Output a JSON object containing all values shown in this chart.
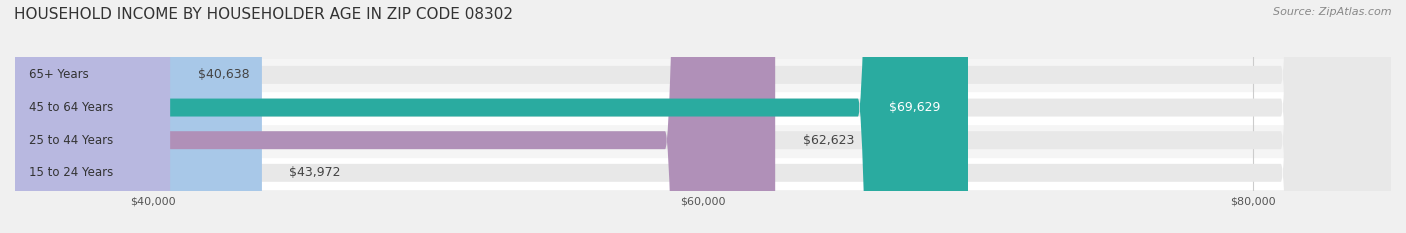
{
  "title": "HOUSEHOLD INCOME BY HOUSEHOLDER AGE IN ZIP CODE 08302",
  "source": "Source: ZipAtlas.com",
  "categories": [
    "15 to 24 Years",
    "25 to 44 Years",
    "45 to 64 Years",
    "65+ Years"
  ],
  "values": [
    43972,
    62623,
    69629,
    40638
  ],
  "bar_colors": [
    "#a8c8e8",
    "#b090b8",
    "#2aaba0",
    "#b8b8e0"
  ],
  "labels": [
    "$43,972",
    "$62,623",
    "$69,629",
    "$40,638"
  ],
  "label_inside": [
    false,
    false,
    true,
    false
  ],
  "xmin": 35000,
  "xmax": 85000,
  "xticks": [
    40000,
    60000,
    80000
  ],
  "xtick_labels": [
    "$40,000",
    "$60,000",
    "$80,000"
  ],
  "bg_color": "#f0f0f0",
  "bar_bg_color": "#e8e8e8",
  "title_fontsize": 11,
  "source_fontsize": 8,
  "label_fontsize": 9,
  "tick_fontsize": 8,
  "cat_fontsize": 8.5,
  "bar_height": 0.55,
  "row_bg_colors": [
    "#ffffff",
    "#f5f5f5",
    "#ffffff",
    "#f5f5f5"
  ]
}
